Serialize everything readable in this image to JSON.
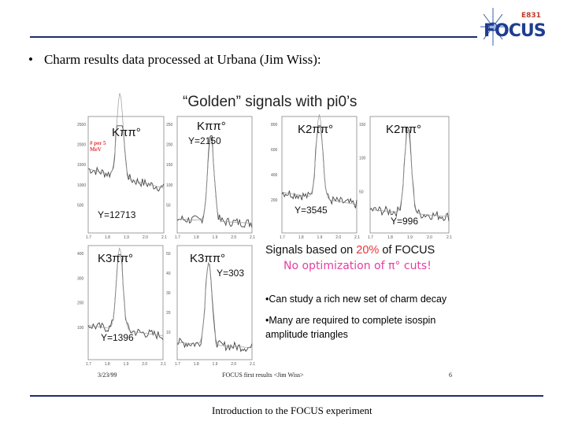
{
  "logo": {
    "tag": "E831",
    "name": "FOCUS"
  },
  "bullet": {
    "symbol": "•",
    "text": "Charm results data processed at Urbana (Jim Wiss):"
  },
  "figure": {
    "title": "“Golden” signals with pi0’s",
    "date": "3/23/99",
    "caption": "FOCUS first results <Jim Wiss>",
    "page": "6",
    "panels": [
      {
        "label": "Kππ°",
        "yield": "Y=12713",
        "note": "# per 5\nMeV",
        "yticks": [
          "2500",
          "2000",
          "1500",
          "1000",
          "500"
        ],
        "xticks": [
          "1.7",
          "1.8",
          "1.9",
          "2.0",
          "2.1"
        ]
      },
      {
        "label": "Kππ°",
        "yield": "Y=2150",
        "yticks": [
          "250",
          "200",
          "150",
          "100",
          "50"
        ],
        "xticks": [
          "1.7",
          "1.8",
          "1.9",
          "2.0",
          "2.1"
        ]
      },
      {
        "label": "K2ππ°",
        "yield": "Y=3545",
        "yticks": [
          "800",
          "600",
          "400",
          "200"
        ],
        "xticks": [
          "1.7",
          "1.8",
          "1.9",
          "2.0",
          "2.1"
        ]
      },
      {
        "label": "K2ππ°",
        "yield": "Y=996",
        "yticks": [
          "150",
          "100",
          "50"
        ],
        "xticks": [
          "1.7",
          "1.8",
          "1.9",
          "2.0",
          "2.1"
        ]
      },
      {
        "label": "K3ππ°",
        "yield": "Y=1396",
        "yticks": [
          "400",
          "300",
          "200",
          "100"
        ],
        "xticks": [
          "1.7",
          "1.8",
          "1.9",
          "2.0",
          "2.1"
        ]
      },
      {
        "label": "K3ππ°",
        "yield": "Y=303",
        "yticks": [
          "50",
          "40",
          "30",
          "20",
          "10"
        ],
        "xticks": [
          "1.7",
          "1.8",
          "1.9",
          "2.0",
          "2.1"
        ]
      }
    ],
    "signals_prefix": "Signals based on ",
    "signals_pct": "20%",
    "signals_suffix": " of FOCUS",
    "no_opt": "No optimization of π° cuts!",
    "point1": "•Can study a rich new set of charm decay",
    "point2_line1": "•Many are required to complete isospin",
    "point2_line2": "amplitude triangles"
  },
  "footer": {
    "text": "Introduction to the FOCUS experiment"
  },
  "colors": {
    "rule": "#1f2d6b",
    "red": "#e8333a",
    "magenta": "#e83ea0",
    "logo": "#1f3d8f"
  }
}
